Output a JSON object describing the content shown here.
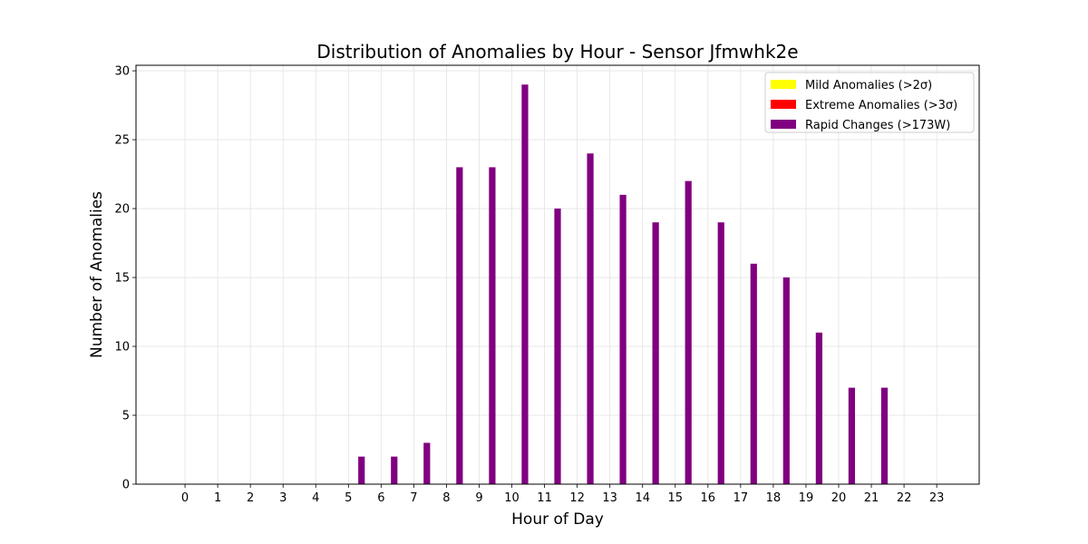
{
  "chart_data": {
    "type": "bar",
    "title": "Distribution of Anomalies by Hour - Sensor Jfmwhk2e",
    "xlabel": "Hour of Day",
    "ylabel": "Number of Anomalies",
    "categories": [
      "0",
      "1",
      "2",
      "3",
      "4",
      "5",
      "6",
      "7",
      "8",
      "9",
      "10",
      "11",
      "12",
      "13",
      "14",
      "15",
      "16",
      "17",
      "18",
      "19",
      "20",
      "21",
      "22",
      "23"
    ],
    "x_values": [
      0,
      1,
      2,
      3,
      4,
      5,
      6,
      7,
      8,
      9,
      10,
      11,
      12,
      13,
      14,
      15,
      16,
      17,
      18,
      19,
      20,
      21,
      22,
      23
    ],
    "ylim": [
      0,
      30.4
    ],
    "yticks": [
      0,
      5,
      10,
      15,
      20,
      25,
      30
    ],
    "grid": true,
    "legend_position": "top-right",
    "series": [
      {
        "name": "Mild Anomalies (>2σ)",
        "color": "#ffff00",
        "values": [
          0,
          0,
          0,
          0,
          0,
          0,
          0,
          0,
          0,
          0,
          0,
          0,
          0,
          0,
          0,
          0,
          0,
          0,
          0,
          0,
          0,
          0,
          0,
          0
        ]
      },
      {
        "name": "Extreme Anomalies (>3σ)",
        "color": "#ff0000",
        "values": [
          0,
          0,
          0,
          0,
          0,
          0,
          0,
          0,
          0,
          0,
          0,
          0,
          0,
          0,
          0,
          0,
          0,
          0,
          0,
          0,
          0,
          0,
          0,
          0
        ]
      },
      {
        "name": "Rapid Changes (>173W)",
        "color": "#800080",
        "values": [
          0,
          0,
          0,
          0,
          0,
          2,
          2,
          3,
          23,
          23,
          29,
          20,
          24,
          21,
          19,
          22,
          19,
          16,
          15,
          11,
          7,
          7,
          0,
          0
        ]
      }
    ]
  }
}
